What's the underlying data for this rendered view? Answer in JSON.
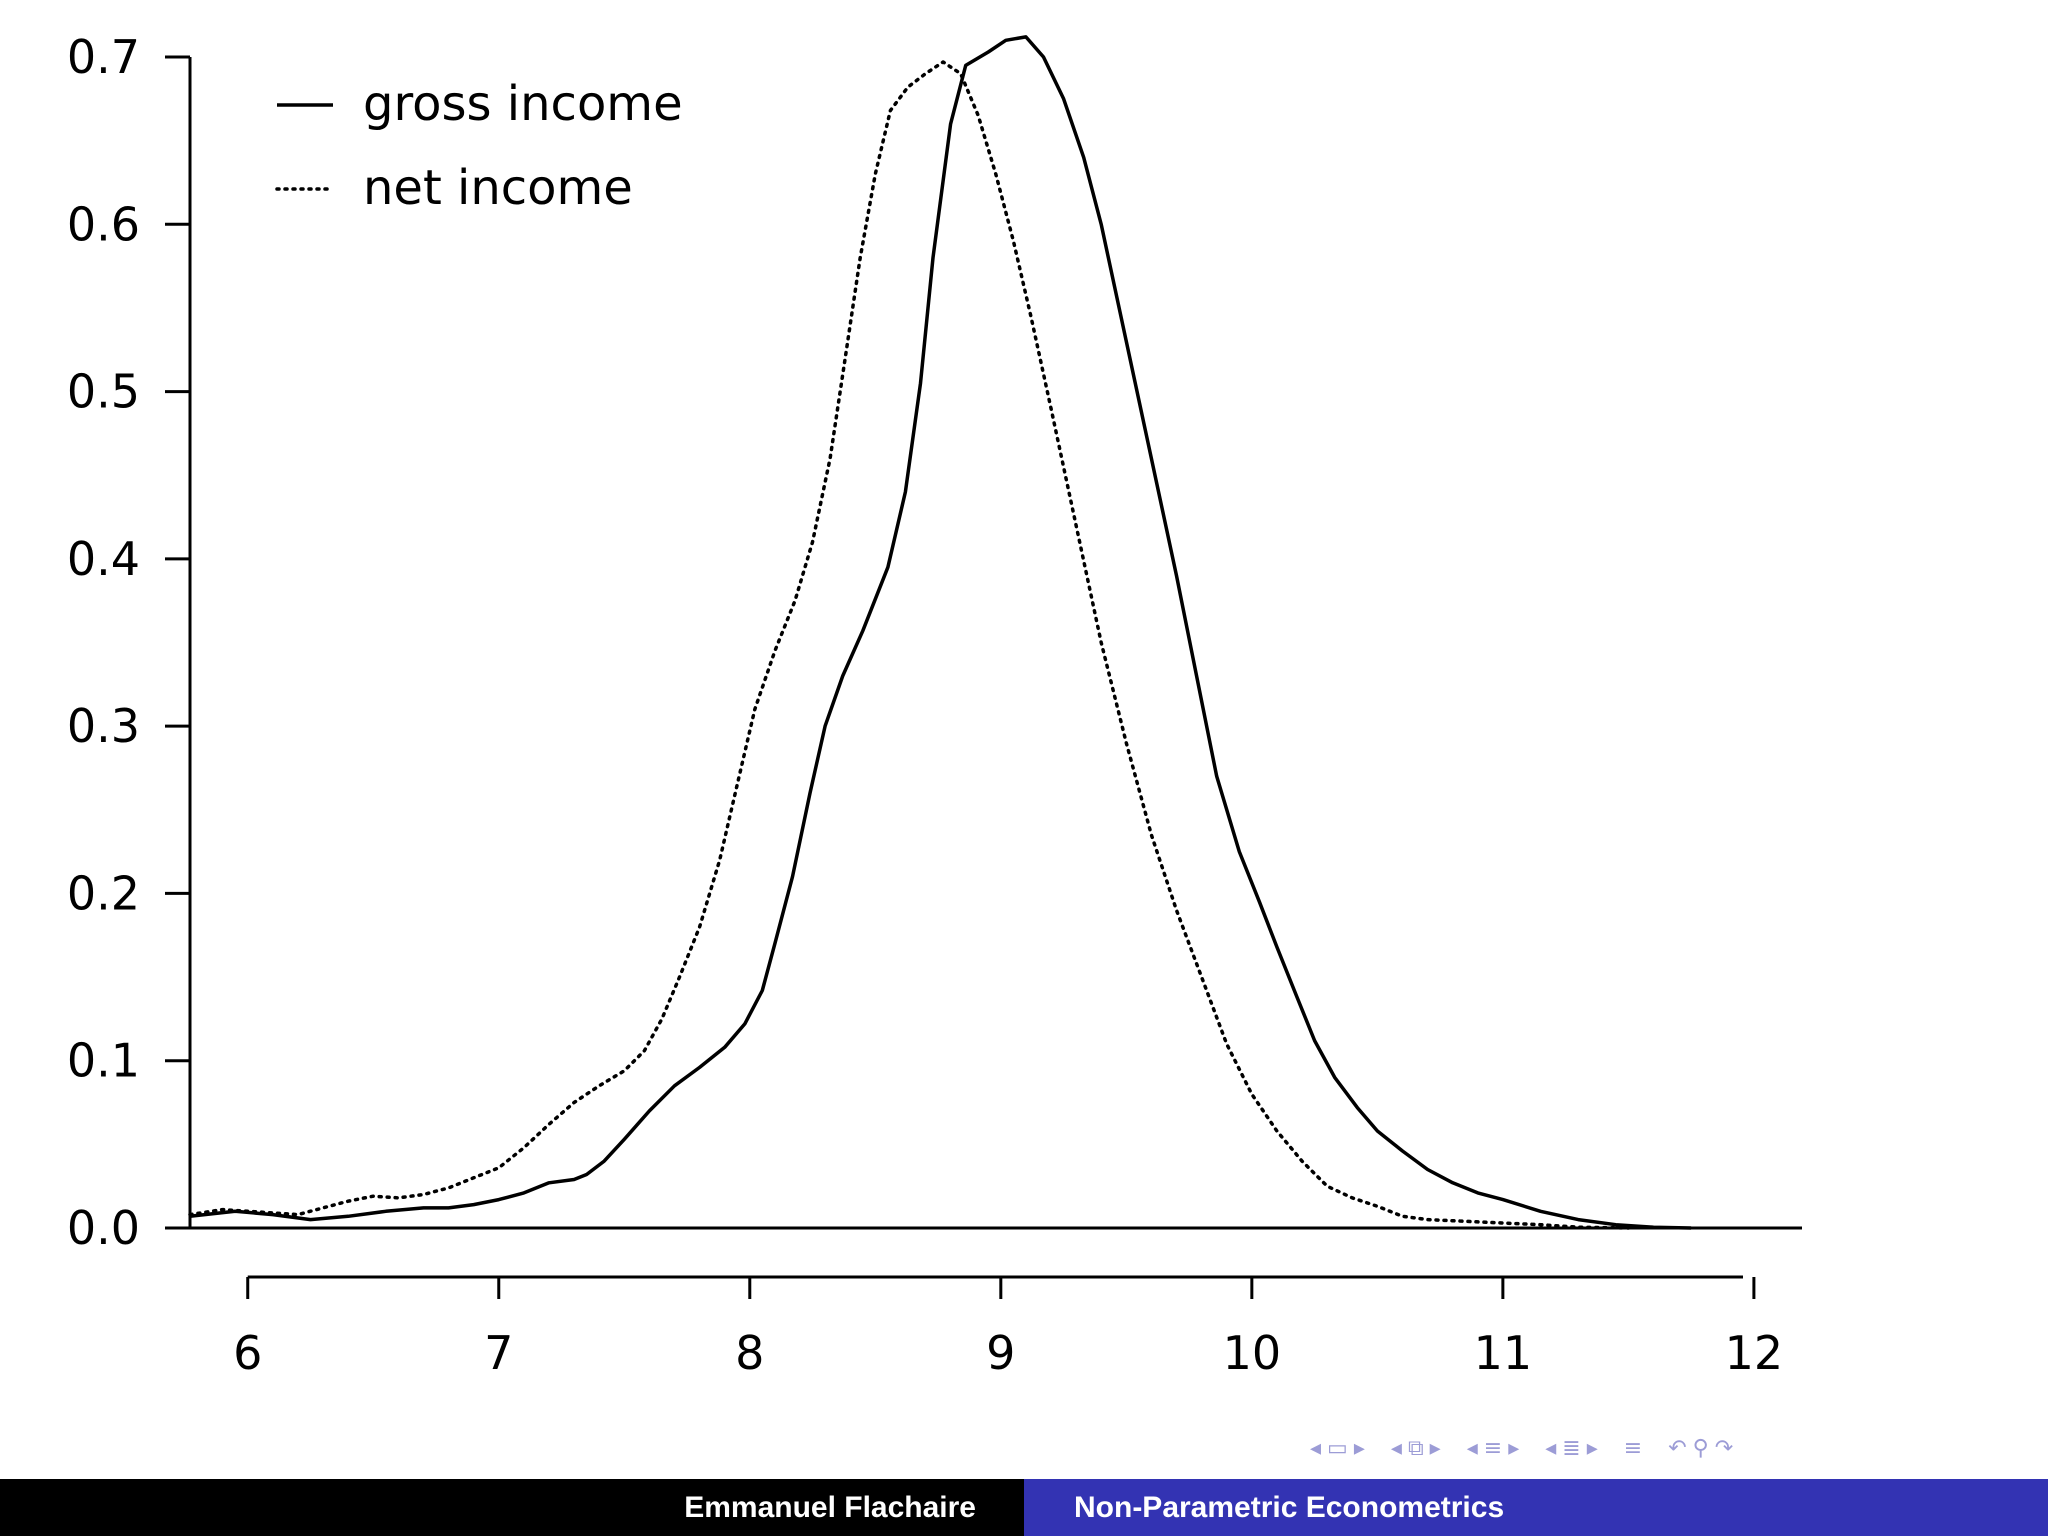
{
  "chart_data": {
    "type": "line",
    "xlim": [
      5.77,
      12.1
    ],
    "ylim": [
      0,
      0.7
    ],
    "x_ticks": [
      "6",
      "7",
      "8",
      "9",
      "10",
      "11",
      "12"
    ],
    "y_ticks": [
      "0.0",
      "0.1",
      "0.2",
      "0.3",
      "0.4",
      "0.5",
      "0.6",
      "0.7"
    ],
    "legend_position": "top-left",
    "series": [
      {
        "name": "gross income",
        "style": "solid",
        "color": "#000000",
        "points": [
          [
            5.77,
            0.007
          ],
          [
            5.95,
            0.01
          ],
          [
            6.1,
            0.008
          ],
          [
            6.25,
            0.005
          ],
          [
            6.4,
            0.007
          ],
          [
            6.55,
            0.01
          ],
          [
            6.7,
            0.012
          ],
          [
            6.8,
            0.012
          ],
          [
            6.9,
            0.014
          ],
          [
            7.0,
            0.017
          ],
          [
            7.1,
            0.021
          ],
          [
            7.2,
            0.027
          ],
          [
            7.3,
            0.029
          ],
          [
            7.35,
            0.032
          ],
          [
            7.42,
            0.04
          ],
          [
            7.5,
            0.053
          ],
          [
            7.6,
            0.07
          ],
          [
            7.7,
            0.085
          ],
          [
            7.8,
            0.096
          ],
          [
            7.9,
            0.108
          ],
          [
            7.98,
            0.122
          ],
          [
            8.05,
            0.142
          ],
          [
            8.1,
            0.17
          ],
          [
            8.17,
            0.21
          ],
          [
            8.24,
            0.26
          ],
          [
            8.3,
            0.3
          ],
          [
            8.37,
            0.33
          ],
          [
            8.45,
            0.357
          ],
          [
            8.55,
            0.395
          ],
          [
            8.62,
            0.44
          ],
          [
            8.68,
            0.505
          ],
          [
            8.73,
            0.58
          ],
          [
            8.8,
            0.66
          ],
          [
            8.86,
            0.695
          ],
          [
            8.95,
            0.703
          ],
          [
            9.02,
            0.71
          ],
          [
            9.1,
            0.712
          ],
          [
            9.17,
            0.7
          ],
          [
            9.25,
            0.675
          ],
          [
            9.33,
            0.64
          ],
          [
            9.4,
            0.6
          ],
          [
            9.5,
            0.53
          ],
          [
            9.6,
            0.46
          ],
          [
            9.7,
            0.39
          ],
          [
            9.78,
            0.33
          ],
          [
            9.86,
            0.27
          ],
          [
            9.95,
            0.225
          ],
          [
            10.03,
            0.195
          ],
          [
            10.1,
            0.168
          ],
          [
            10.18,
            0.138
          ],
          [
            10.25,
            0.112
          ],
          [
            10.33,
            0.09
          ],
          [
            10.42,
            0.072
          ],
          [
            10.5,
            0.058
          ],
          [
            10.6,
            0.046
          ],
          [
            10.7,
            0.035
          ],
          [
            10.8,
            0.027
          ],
          [
            10.9,
            0.021
          ],
          [
            11.0,
            0.017
          ],
          [
            11.15,
            0.01
          ],
          [
            11.3,
            0.005
          ],
          [
            11.45,
            0.002
          ],
          [
            11.6,
            0.0005
          ],
          [
            11.75,
            0.0
          ]
        ]
      },
      {
        "name": "net income",
        "style": "dotted",
        "color": "#000000",
        "points": [
          [
            5.77,
            0.008
          ],
          [
            5.9,
            0.011
          ],
          [
            6.0,
            0.01
          ],
          [
            6.1,
            0.009
          ],
          [
            6.2,
            0.008
          ],
          [
            6.3,
            0.012
          ],
          [
            6.4,
            0.016
          ],
          [
            6.5,
            0.019
          ],
          [
            6.6,
            0.018
          ],
          [
            6.7,
            0.02
          ],
          [
            6.8,
            0.024
          ],
          [
            6.9,
            0.03
          ],
          [
            7.0,
            0.036
          ],
          [
            7.1,
            0.048
          ],
          [
            7.2,
            0.062
          ],
          [
            7.3,
            0.075
          ],
          [
            7.4,
            0.085
          ],
          [
            7.5,
            0.094
          ],
          [
            7.58,
            0.106
          ],
          [
            7.65,
            0.125
          ],
          [
            7.72,
            0.15
          ],
          [
            7.8,
            0.18
          ],
          [
            7.88,
            0.22
          ],
          [
            7.95,
            0.265
          ],
          [
            8.02,
            0.31
          ],
          [
            8.1,
            0.345
          ],
          [
            8.18,
            0.375
          ],
          [
            8.25,
            0.41
          ],
          [
            8.32,
            0.46
          ],
          [
            8.38,
            0.52
          ],
          [
            8.44,
            0.58
          ],
          [
            8.5,
            0.63
          ],
          [
            8.56,
            0.668
          ],
          [
            8.63,
            0.682
          ],
          [
            8.7,
            0.69
          ],
          [
            8.77,
            0.697
          ],
          [
            8.84,
            0.69
          ],
          [
            8.91,
            0.665
          ],
          [
            8.98,
            0.63
          ],
          [
            9.05,
            0.59
          ],
          [
            9.12,
            0.545
          ],
          [
            9.2,
            0.49
          ],
          [
            9.3,
            0.42
          ],
          [
            9.4,
            0.35
          ],
          [
            9.5,
            0.29
          ],
          [
            9.6,
            0.235
          ],
          [
            9.7,
            0.19
          ],
          [
            9.8,
            0.15
          ],
          [
            9.9,
            0.11
          ],
          [
            10.0,
            0.08
          ],
          [
            10.1,
            0.058
          ],
          [
            10.2,
            0.04
          ],
          [
            10.3,
            0.025
          ],
          [
            10.4,
            0.018
          ],
          [
            10.5,
            0.013
          ],
          [
            10.6,
            0.007
          ],
          [
            10.7,
            0.005
          ],
          [
            10.85,
            0.004
          ],
          [
            11.0,
            0.003
          ],
          [
            11.15,
            0.002
          ],
          [
            11.3,
            0.0005
          ],
          [
            11.5,
            0.0
          ]
        ]
      }
    ]
  },
  "nav_icons": [
    "arrow-left-icon",
    "frame-icon",
    "arrow-right-icon",
    "arrow-left-icon",
    "subsection-icon",
    "arrow-right-icon",
    "arrow-left-icon",
    "section-icon",
    "arrow-right-icon",
    "arrow-left-icon",
    "section-stack-icon",
    "arrow-right-icon",
    "align-icon",
    "search-back-icon",
    "search-icon",
    "search-forward-icon"
  ],
  "footer": {
    "author": "Emmanuel Flachaire",
    "title": "Non-Parametric Econometrics",
    "left_bg": "#000000",
    "right_bg": "#3333b3"
  }
}
